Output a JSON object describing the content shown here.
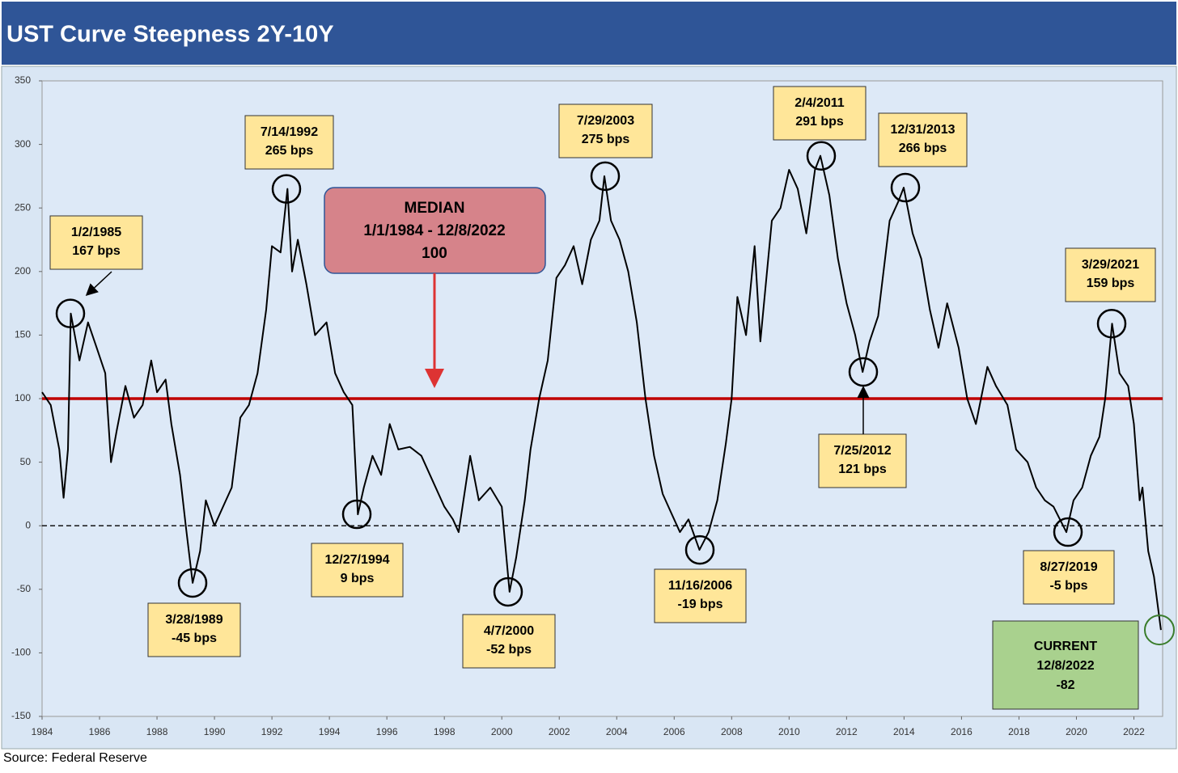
{
  "chart_data": {
    "type": "line",
    "title": "UST Curve Steepness 2Y-10Y",
    "source": "Source: Federal Reserve",
    "color": "#000000",
    "xlim": [
      1984,
      2023
    ],
    "xticks": [
      1984,
      1986,
      1988,
      1990,
      1992,
      1994,
      1996,
      1998,
      2000,
      2002,
      2004,
      2006,
      2008,
      2010,
      2012,
      2014,
      2016,
      2018,
      2020,
      2022
    ],
    "ylim": [
      -150,
      350
    ],
    "yticks": [
      -150,
      -100,
      -50,
      0,
      50,
      100,
      150,
      200,
      250,
      300,
      350
    ],
    "x": [
      1984.0,
      1984.3,
      1984.6,
      1984.75,
      1984.9,
      1985.0,
      1985.3,
      1985.6,
      1985.9,
      1986.2,
      1986.4,
      1986.6,
      1986.9,
      1987.2,
      1987.5,
      1987.8,
      1988.0,
      1988.3,
      1988.5,
      1988.8,
      1989.0,
      1989.24,
      1989.5,
      1989.7,
      1990.0,
      1990.3,
      1990.6,
      1990.9,
      1991.2,
      1991.5,
      1991.8,
      1992.0,
      1992.3,
      1992.54,
      1992.7,
      1992.9,
      1993.2,
      1993.5,
      1993.9,
      1994.2,
      1994.5,
      1994.8,
      1994.99,
      1995.2,
      1995.5,
      1995.8,
      1996.1,
      1996.4,
      1996.8,
      1997.2,
      1997.6,
      1998.0,
      1998.3,
      1998.5,
      1998.7,
      1998.9,
      1999.2,
      1999.6,
      2000.0,
      2000.27,
      2000.5,
      2000.8,
      2001.0,
      2001.3,
      2001.6,
      2001.9,
      2002.2,
      2002.5,
      2002.8,
      2003.1,
      2003.4,
      2003.57,
      2003.8,
      2004.1,
      2004.4,
      2004.7,
      2005.0,
      2005.3,
      2005.6,
      2005.9,
      2006.2,
      2006.5,
      2006.88,
      2007.2,
      2007.5,
      2007.8,
      2008.0,
      2008.2,
      2008.5,
      2008.8,
      2009.0,
      2009.4,
      2009.7,
      2010.0,
      2010.3,
      2010.6,
      2010.9,
      2011.09,
      2011.4,
      2011.7,
      2012.0,
      2012.3,
      2012.56,
      2012.8,
      2013.1,
      2013.5,
      2013.8,
      2013.99,
      2014.3,
      2014.6,
      2014.9,
      2015.2,
      2015.5,
      2015.9,
      2016.2,
      2016.5,
      2016.9,
      2017.2,
      2017.6,
      2017.9,
      2018.3,
      2018.6,
      2018.9,
      2019.2,
      2019.65,
      2019.9,
      2020.2,
      2020.5,
      2020.8,
      2021.0,
      2021.24,
      2021.5,
      2021.8,
      2022.0,
      2022.2,
      2022.3,
      2022.5,
      2022.7,
      2022.94
    ],
    "values": [
      105,
      95,
      60,
      22,
      60,
      167,
      130,
      160,
      140,
      120,
      50,
      75,
      110,
      85,
      95,
      130,
      105,
      115,
      80,
      40,
      0,
      -45,
      -20,
      20,
      0,
      15,
      30,
      85,
      95,
      120,
      170,
      220,
      215,
      265,
      200,
      225,
      190,
      150,
      160,
      120,
      105,
      95,
      9,
      30,
      55,
      40,
      80,
      60,
      62,
      55,
      35,
      15,
      5,
      -5,
      25,
      55,
      20,
      30,
      15,
      -52,
      -25,
      20,
      60,
      100,
      130,
      195,
      205,
      220,
      190,
      225,
      240,
      275,
      240,
      225,
      200,
      160,
      100,
      55,
      25,
      10,
      -5,
      5,
      -19,
      -5,
      20,
      65,
      100,
      180,
      150,
      220,
      145,
      240,
      250,
      280,
      265,
      230,
      280,
      291,
      260,
      210,
      175,
      150,
      121,
      145,
      165,
      240,
      255,
      266,
      230,
      210,
      170,
      140,
      175,
      140,
      100,
      80,
      125,
      110,
      95,
      60,
      50,
      30,
      20,
      15,
      -5,
      20,
      30,
      55,
      70,
      100,
      159,
      120,
      110,
      80,
      20,
      30,
      -20,
      -40,
      -82
    ],
    "median": {
      "lines": [
        "MEDIAN",
        "1/1/1984 - 12/8/2022"
      ],
      "value": 100
    },
    "current": {
      "lines": [
        "CURRENT",
        "12/8/2022"
      ],
      "value": -82
    },
    "annotations": [
      {
        "date": "1/2/1985",
        "value": 167,
        "label": "167 bps"
      },
      {
        "date": "3/28/1989",
        "value": -45,
        "label": "-45 bps"
      },
      {
        "date": "7/14/1992",
        "value": 265,
        "label": "265 bps"
      },
      {
        "date": "12/27/1994",
        "value": 9,
        "label": "9 bps"
      },
      {
        "date": "4/7/2000",
        "value": -52,
        "label": "-52 bps"
      },
      {
        "date": "7/29/2003",
        "value": 275,
        "label": "275 bps"
      },
      {
        "date": "11/16/2006",
        "value": -19,
        "label": "-19 bps"
      },
      {
        "date": "2/4/2011",
        "value": 291,
        "label": "291 bps"
      },
      {
        "date": "7/25/2012",
        "value": 121,
        "label": "121 bps"
      },
      {
        "date": "12/31/2013",
        "value": 266,
        "label": "266 bps"
      },
      {
        "date": "8/27/2019",
        "value": -5,
        "label": "-5 bps"
      },
      {
        "date": "3/29/2021",
        "value": 159,
        "label": "159 bps"
      }
    ]
  }
}
